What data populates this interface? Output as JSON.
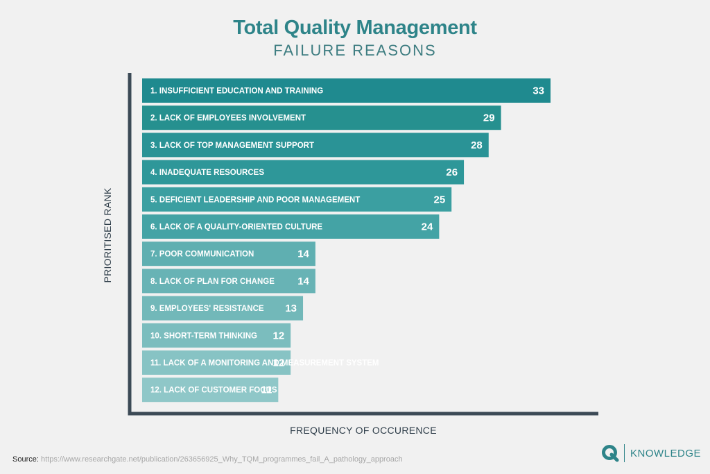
{
  "header": {
    "title": "Total Quality Management",
    "subtitle": "FAILURE REASONS"
  },
  "chart_data": {
    "type": "bar",
    "orientation": "horizontal",
    "title": "Total Quality Management",
    "subtitle": "FAILURE REASONS",
    "xlabel": "FREQUENCY OF OCCURENCE",
    "ylabel": "PRIORITISED RANK",
    "xlim": [
      0,
      36
    ],
    "categories": [
      "1. INSUFFICIENT EDUCATION AND TRAINING",
      "2. LACK OF EMPLOYEES INVOLVEMENT",
      "3. LACK OF TOP MANAGEMENT SUPPORT",
      "4. INADEQUATE RESOURCES",
      "5. DEFICIENT LEADERSHIP AND POOR MANAGEMENT",
      "6. LACK OF A QUALITY-ORIENTED CULTURE",
      "7. POOR COMMUNICATION",
      "8. LACK OF PLAN FOR CHANGE",
      "9. EMPLOYEES' RESISTANCE",
      "10. SHORT-TERM THINKING",
      "11. LACK OF A MONITORING AND MEASUREMENT SYSTEM",
      "12. LACK OF CUSTOMER FOCUS"
    ],
    "values": [
      33,
      29,
      28,
      26,
      25,
      24,
      14,
      14,
      13,
      12,
      12,
      11
    ],
    "colors": [
      "#1f8a8f",
      "#26908f",
      "#2a9396",
      "#2e9799",
      "#3b9fa1",
      "#44a3a5",
      "#5fafb1",
      "#68b3b5",
      "#72b8b9",
      "#7bbdbe",
      "#87c3c4",
      "#8fc7c8"
    ],
    "axis_color": "#3c4a56"
  },
  "source": {
    "label": "Source:",
    "url": "https://www.researchgate.net/publication/263656925_Why_TQM_programmes_fail_A_pathology_approach"
  },
  "brand": {
    "name": "KNOWLEDGE",
    "color": "#2e8489"
  },
  "icons": {
    "brand_logo": "q-logo-icon"
  }
}
